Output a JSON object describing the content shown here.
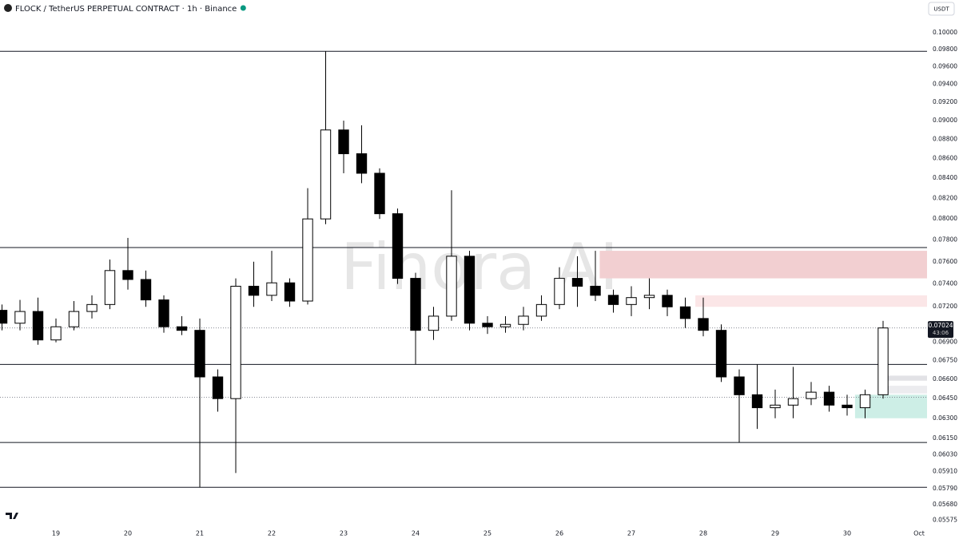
{
  "chart_data": {
    "type": "candlestick",
    "title": "FLOCK / TetherUS PERPETUAL CONTRACT · 1h · Binance",
    "currency": "USDT",
    "watermark": "Finora AI",
    "log_y": true,
    "up_color": "#ffffff",
    "down_color": "#000000",
    "x": [
      18.25,
      18.5,
      18.75,
      19,
      19.25,
      19.5,
      19.75,
      20,
      20.25,
      20.5,
      20.75,
      21,
      21.25,
      21.5,
      21.75,
      22,
      22.25,
      22.5,
      22.75,
      23,
      23.25,
      23.5,
      23.75,
      24,
      24.25,
      24.5,
      24.75,
      25,
      25.25,
      25.5,
      25.75,
      26,
      26.25,
      26.5,
      26.75,
      27,
      27.25,
      27.5,
      27.75,
      28,
      28.25,
      28.5,
      28.75,
      29,
      29.25,
      29.5,
      29.75,
      30,
      30.25,
      30.5
    ],
    "open": [
      0.0717,
      0.0706,
      0.0716,
      0.0692,
      0.0703,
      0.0716,
      0.0722,
      0.0752,
      0.0744,
      0.0726,
      0.0703,
      0.07,
      0.0662,
      0.0645,
      0.0738,
      0.073,
      0.0741,
      0.0725,
      0.08,
      0.089,
      0.0865,
      0.0845,
      0.0805,
      0.0745,
      0.07,
      0.0712,
      0.0765,
      0.0706,
      0.0703,
      0.0705,
      0.0712,
      0.0722,
      0.0745,
      0.0738,
      0.073,
      0.0722,
      0.0728,
      0.073,
      0.072,
      0.071,
      0.07,
      0.0662,
      0.0648,
      0.0638,
      0.064,
      0.0645,
      0.065,
      0.064,
      0.0638,
      0.0648
    ],
    "high": [
      0.0722,
      0.0726,
      0.0728,
      0.071,
      0.0725,
      0.073,
      0.0762,
      0.0782,
      0.0752,
      0.073,
      0.0712,
      0.071,
      0.0668,
      0.0745,
      0.076,
      0.077,
      0.0745,
      0.083,
      0.0978,
      0.09,
      0.0895,
      0.085,
      0.081,
      0.075,
      0.072,
      0.0828,
      0.077,
      0.0712,
      0.0712,
      0.072,
      0.073,
      0.0755,
      0.0765,
      0.077,
      0.0735,
      0.0738,
      0.0745,
      0.0735,
      0.0728,
      0.0728,
      0.0705,
      0.0668,
      0.0672,
      0.0652,
      0.067,
      0.0658,
      0.0655,
      0.0648,
      0.0652,
      0.0708
    ],
    "low": [
      0.07,
      0.07,
      0.0688,
      0.069,
      0.07,
      0.071,
      0.0718,
      0.0735,
      0.072,
      0.0698,
      0.0696,
      0.058,
      0.0635,
      0.059,
      0.072,
      0.0725,
      0.072,
      0.0722,
      0.0795,
      0.0845,
      0.0835,
      0.08,
      0.074,
      0.0672,
      0.0692,
      0.0708,
      0.07,
      0.0697,
      0.0698,
      0.07,
      0.0708,
      0.0718,
      0.072,
      0.0725,
      0.0715,
      0.0712,
      0.0718,
      0.0712,
      0.0702,
      0.0695,
      0.0658,
      0.0612,
      0.0622,
      0.063,
      0.063,
      0.064,
      0.0635,
      0.0632,
      0.063,
      0.0645
    ],
    "close": [
      0.0706,
      0.0716,
      0.0692,
      0.0703,
      0.0716,
      0.0722,
      0.0752,
      0.0744,
      0.0726,
      0.0703,
      0.07,
      0.0662,
      0.0645,
      0.0738,
      0.073,
      0.0741,
      0.0725,
      0.08,
      0.089,
      0.0865,
      0.0845,
      0.0805,
      0.0745,
      0.07,
      0.0712,
      0.0765,
      0.0706,
      0.0703,
      0.0705,
      0.0712,
      0.0722,
      0.0745,
      0.0738,
      0.073,
      0.0722,
      0.0728,
      0.073,
      0.072,
      0.071,
      0.07,
      0.0662,
      0.0648,
      0.0638,
      0.064,
      0.0645,
      0.065,
      0.064,
      0.0638,
      0.0648,
      0.0702
    ],
    "xlim": [
      18.222,
      31.111
    ],
    "xticks": [
      19,
      20,
      21,
      22,
      23,
      24,
      25,
      26,
      27,
      28,
      29,
      30,
      {
        "value": 31,
        "label": "Oct"
      }
    ],
    "ylim": [
      0.0553,
      0.104
    ],
    "yticks": [
      {
        "value": 0.1,
        "label": "0.10000"
      },
      {
        "value": 0.098,
        "label": "0.09800"
      },
      {
        "value": 0.096,
        "label": "0.09600"
      },
      {
        "value": 0.094,
        "label": "0.09400"
      },
      {
        "value": 0.092,
        "label": "0.09200"
      },
      {
        "value": 0.09,
        "label": "0.09000"
      },
      {
        "value": 0.088,
        "label": "0.08800"
      },
      {
        "value": 0.086,
        "label": "0.08600"
      },
      {
        "value": 0.084,
        "label": "0.08400"
      },
      {
        "value": 0.082,
        "label": "0.08200"
      },
      {
        "value": 0.08,
        "label": "0.08000"
      },
      {
        "value": 0.078,
        "label": "0.07800"
      },
      {
        "value": 0.076,
        "label": "0.07600"
      },
      {
        "value": 0.074,
        "label": "0.07400"
      },
      {
        "value": 0.072,
        "label": "0.07200"
      },
      {
        "value": 0.069,
        "label": "0.06900"
      },
      {
        "value": 0.0675,
        "label": "0.06750"
      },
      {
        "value": 0.066,
        "label": "0.06600"
      },
      {
        "value": 0.0645,
        "label": "0.06450"
      },
      {
        "value": 0.063,
        "label": "0.06300"
      },
      {
        "value": 0.0615,
        "label": "0.06150"
      },
      {
        "value": 0.0603,
        "label": "0.06030"
      },
      {
        "value": 0.0591,
        "label": "0.05910"
      },
      {
        "value": 0.0579,
        "label": "0.05790"
      },
      {
        "value": 0.0568,
        "label": "0.05680"
      },
      {
        "value": 0.05575,
        "label": "0.05575"
      }
    ],
    "levels": [
      0.0978,
      0.0773,
      0.0672,
      0.0612,
      0.058
    ],
    "dotted_levels": [
      0.0702,
      0.0646
    ],
    "zones": [
      {
        "from": 0.077,
        "to": 0.0745,
        "start": 26.56,
        "color": "#f2cfd1"
      },
      {
        "from": 0.073,
        "to": 0.072,
        "start": 27.89,
        "color": "#fbe6e7"
      },
      {
        "from": 0.0663,
        "to": 0.0659,
        "start": 30.56,
        "color": "#e2e2e6"
      },
      {
        "from": 0.0655,
        "to": 0.0649,
        "start": 30.56,
        "color": "#ececef"
      },
      {
        "from": 0.0648,
        "to": 0.063,
        "start": 30.11,
        "color": "#cdeee6"
      }
    ],
    "last_price": 0.07024,
    "countdown": "43:06"
  }
}
